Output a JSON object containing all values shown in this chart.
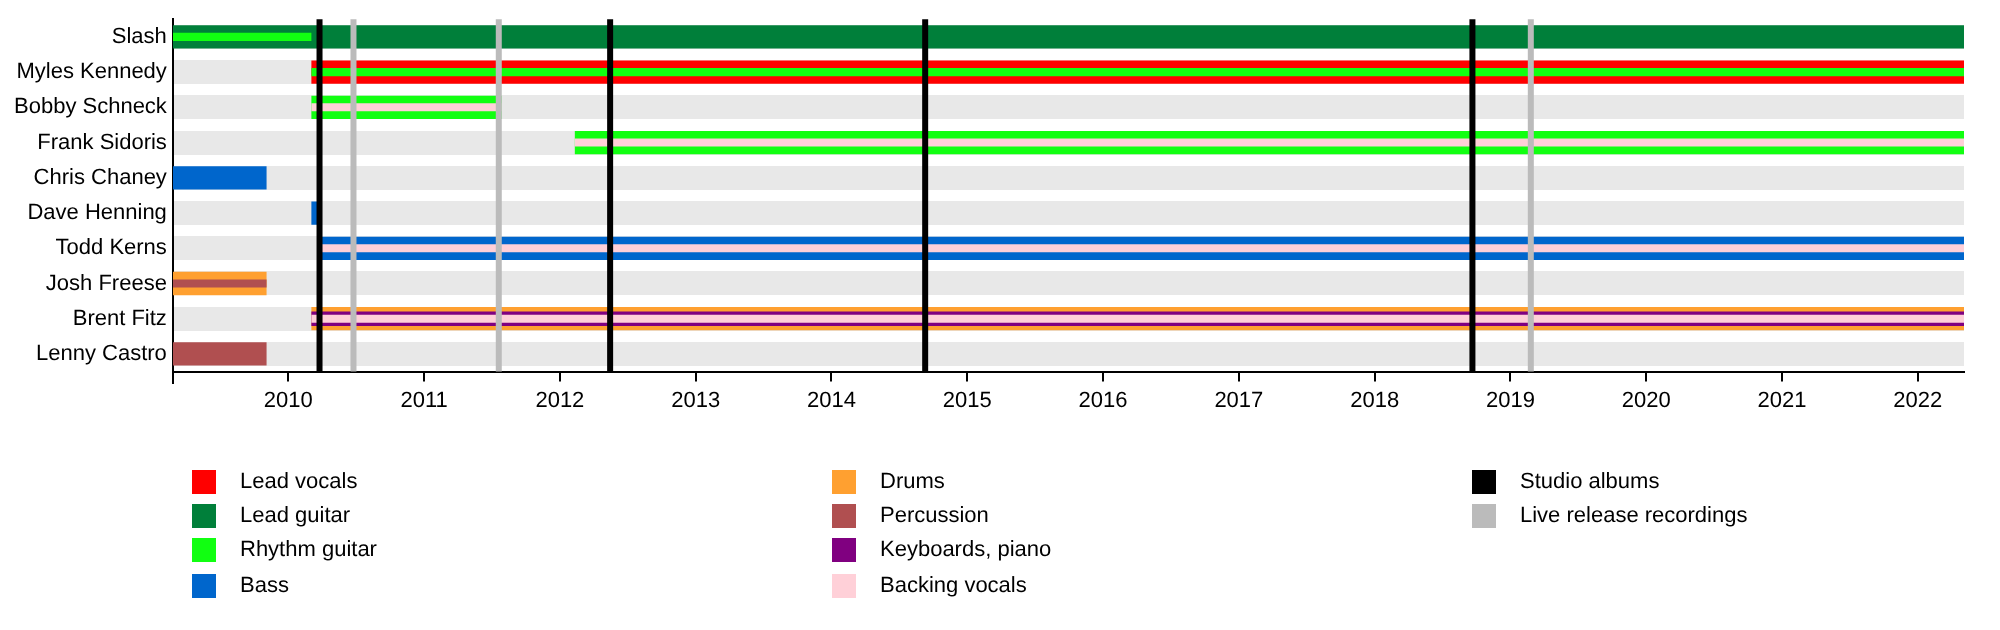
{
  "chart_data": {
    "type": "bar",
    "orientation": "horizontal",
    "categories": [
      "Slash",
      "Myles Kennedy",
      "Bobby Schneck",
      "Frank Sidoris",
      "Chris Chaney",
      "Dave Henning",
      "Todd Kerns",
      "Josh Freese",
      "Brent Fitz",
      "Lenny Castro"
    ],
    "series": [
      {
        "name": "Lead vocals",
        "color": "#ff0000",
        "base": [
          null,
          2010.17,
          null,
          null,
          null,
          null,
          null,
          null,
          null,
          null
        ],
        "values": [
          null,
          12.17,
          null,
          null,
          null,
          null,
          null,
          null,
          null,
          null
        ]
      },
      {
        "name": "Lead guitar",
        "color": "#007f3a",
        "base": [
          2009.15,
          null,
          null,
          null,
          null,
          null,
          null,
          null,
          null,
          null
        ],
        "values": [
          13.19,
          null,
          null,
          null,
          null,
          null,
          null,
          null,
          null,
          null
        ]
      },
      {
        "name": "Rhythm guitar",
        "color": "#11ff11",
        "base": [
          2009.15,
          2010.17,
          2010.17,
          2012.11,
          null,
          null,
          null,
          null,
          null,
          null
        ],
        "values": [
          1.02,
          12.17,
          1.4,
          10.23,
          null,
          null,
          null,
          null,
          null,
          null
        ]
      },
      {
        "name": "Bass",
        "color": "#0066cc",
        "base": [
          null,
          null,
          null,
          null,
          2009.15,
          2010.17,
          2010.22,
          null,
          null,
          null
        ],
        "values": [
          null,
          null,
          null,
          null,
          0.69,
          0.05,
          12.12,
          null,
          null,
          null
        ]
      },
      {
        "name": "Drums",
        "color": "#ffa030",
        "base": [
          null,
          null,
          null,
          null,
          null,
          null,
          null,
          2009.15,
          2010.17,
          null
        ],
        "values": [
          null,
          null,
          null,
          null,
          null,
          null,
          null,
          0.69,
          12.17,
          null
        ]
      },
      {
        "name": "Percussion",
        "color": "#b04f50",
        "base": [
          null,
          null,
          null,
          null,
          null,
          null,
          null,
          2009.15,
          null,
          2009.15
        ],
        "values": [
          null,
          null,
          null,
          null,
          null,
          null,
          null,
          0.69,
          null,
          0.69
        ]
      },
      {
        "name": "Keyboards, piano",
        "color": "#800080",
        "base": [
          null,
          null,
          null,
          null,
          null,
          null,
          null,
          null,
          2010.17,
          null
        ],
        "values": [
          null,
          null,
          null,
          null,
          null,
          null,
          null,
          null,
          12.17,
          null
        ]
      },
      {
        "name": "Backing vocals",
        "color": "#ffd0d8",
        "base": [
          null,
          null,
          2010.17,
          2012.11,
          null,
          null,
          2010.22,
          null,
          2010.17,
          null
        ],
        "values": [
          null,
          null,
          1.4,
          10.23,
          null,
          null,
          12.12,
          null,
          12.17,
          null
        ]
      }
    ],
    "xlim": [
      2009.15,
      2022.34
    ],
    "xticks": [
      2010,
      2011,
      2012,
      2013,
      2014,
      2015,
      2016,
      2017,
      2018,
      2019,
      2020,
      2021,
      2022
    ],
    "ref_lines": [
      {
        "axis": "x",
        "value": 2010.23,
        "label": "Studio albums",
        "color": "#000000"
      },
      {
        "axis": "x",
        "value": 2012.37,
        "color": "#000000"
      },
      {
        "axis": "x",
        "value": 2014.69,
        "color": "#000000"
      },
      {
        "axis": "x",
        "value": 2018.72,
        "color": "#000000"
      },
      {
        "axis": "x",
        "value": 2010.48,
        "label": "Live release recordings",
        "color": "#bbbbbb"
      },
      {
        "axis": "x",
        "value": 2011.55,
        "color": "#bbbbbb"
      },
      {
        "axis": "x",
        "value": 2019.15,
        "color": "#bbbbbb"
      }
    ],
    "grid": "y",
    "legend": "bottom"
  }
}
